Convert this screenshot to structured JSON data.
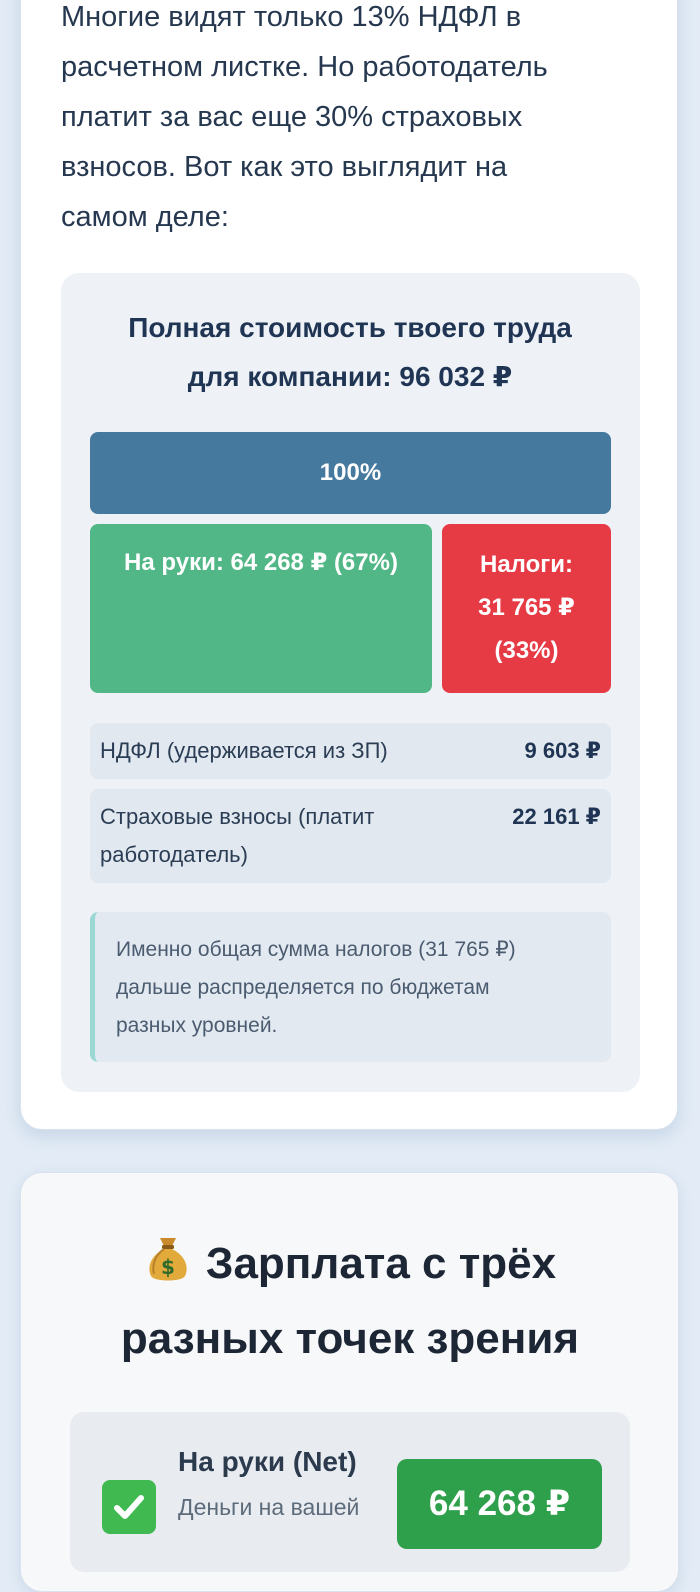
{
  "intro": {
    "lines": [
      "Многие видят только 13% НДФЛ в",
      "расчетном листке. Но работодатель",
      "платит за вас еще 30% страховых",
      "взносов. Вот как это выглядит на",
      "самом деле:"
    ]
  },
  "labor_cost": {
    "title_lines": [
      "Полная стоимость твоего труда",
      "для компании: 96 032 ₽"
    ],
    "total_label": "100%",
    "net_share": 67,
    "tax_share": 33,
    "net_label": "На руки: 64 268 ₽ (67%)",
    "tax_lines": [
      "Налоги:",
      "31 765 ₽",
      "(33%)"
    ],
    "rows": [
      {
        "label": "НДФЛ (удерживается из ЗП)",
        "value": "9 603 ₽"
      },
      {
        "label_lines": [
          "Страховые взносы (платит",
          "работодатель)"
        ],
        "value": "22 161 ₽"
      }
    ],
    "note_lines": [
      "Именно общая сумма налогов (31 765 ₽)",
      "дальше распределяется по бюджетам",
      "разных уровней."
    ]
  },
  "perspectives": {
    "title_lines": [
      "Зарплата с трёх",
      "разных точек зрения"
    ],
    "title_icon": "money-bag-icon",
    "net": {
      "icon": "check-icon",
      "title": "На руки (Net)",
      "subtitle": "Деньги на вашей",
      "amount": "64 268 ₽"
    }
  },
  "colors": {
    "total_bar": "#45799d",
    "net_bar": "#52b786",
    "tax_bar": "#e63a45",
    "net_badge": "#2e9f4a"
  }
}
